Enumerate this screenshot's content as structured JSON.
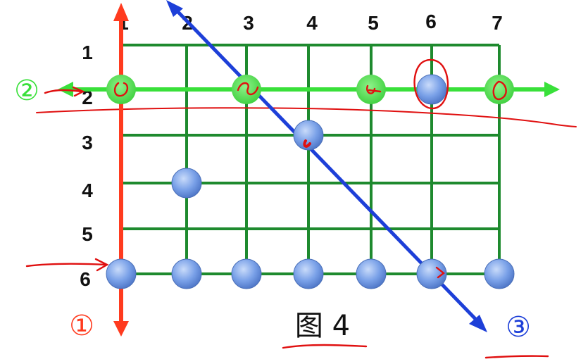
{
  "figure": {
    "caption": "图 4",
    "columns": [
      "1",
      "2",
      "3",
      "4",
      "5",
      "6",
      "7"
    ],
    "rows": [
      "1",
      "2",
      "3",
      "4",
      "5",
      "6"
    ],
    "marks": {
      "circled_1": "①",
      "circled_2": "②",
      "circled_3": "③"
    },
    "stones": [
      {
        "col": 2,
        "row": 4
      },
      {
        "col": 4,
        "row": 3
      },
      {
        "col": 6,
        "row": 2
      },
      {
        "col": 1,
        "row": 6
      },
      {
        "col": 2,
        "row": 6
      },
      {
        "col": 3,
        "row": 6
      },
      {
        "col": 4,
        "row": 6
      },
      {
        "col": 5,
        "row": 6
      },
      {
        "col": 6,
        "row": 6
      },
      {
        "col": 7,
        "row": 6
      }
    ],
    "highlighted_points": [
      {
        "col": 1,
        "row": 2
      },
      {
        "col": 3,
        "row": 2
      },
      {
        "col": 5,
        "row": 2
      },
      {
        "col": 7,
        "row": 2
      }
    ],
    "colors": {
      "grid": "#1e8a2e",
      "vertical_arrow": "#ff3b1f",
      "horizontal_arrow": "#39e03a",
      "diagonal_arrow": "#1d3fd8",
      "stone": "#6f98e6",
      "annotation": "#e01010"
    }
  }
}
